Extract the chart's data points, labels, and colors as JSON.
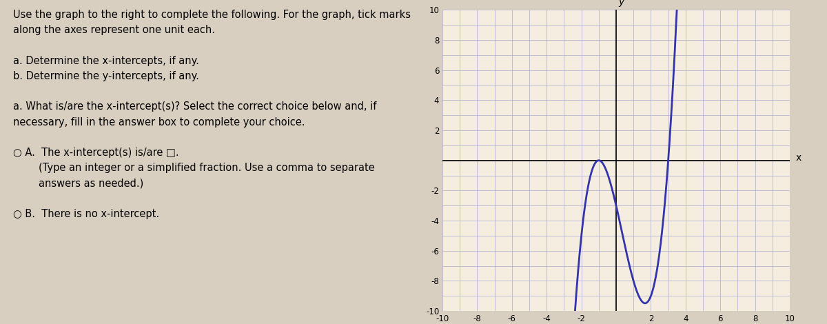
{
  "xlim": [
    -10,
    10
  ],
  "ylim": [
    -10,
    10
  ],
  "xticks": [
    -10,
    -8,
    -6,
    -4,
    -2,
    0,
    2,
    4,
    6,
    8,
    10
  ],
  "yticks": [
    -10,
    -8,
    -6,
    -4,
    -2,
    0,
    2,
    4,
    6,
    8,
    10
  ],
  "xtick_labels": [
    "-10",
    "-8",
    "-6",
    "-4",
    "-2",
    "",
    "2",
    "4",
    "6",
    "8",
    "10"
  ],
  "ytick_labels": [
    "-10",
    "-8",
    "-6",
    "-4",
    "-2",
    "",
    "2",
    "4",
    "6",
    "8",
    "10"
  ],
  "curve_color": "#3333aa",
  "curve_linewidth": 2.0,
  "grid_color": "#aaaacc",
  "grid_linewidth": 0.5,
  "axis_color": "#000000",
  "background_color": "#f5ede0",
  "xlabel": "x",
  "ylabel": "y",
  "graph_bg": "#f5ede0",
  "fig_bg": "#d9cfc0"
}
